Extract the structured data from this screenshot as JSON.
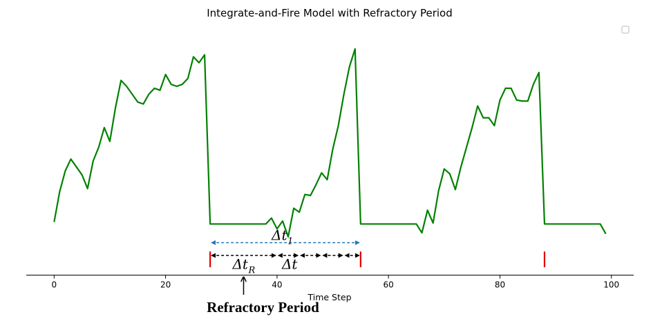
{
  "chart_data": {
    "type": "line",
    "title": "Integrate-and-Fire Model with Refractory Period",
    "xlabel": "Time Step",
    "ylabel": "",
    "xlim": [
      -5,
      104
    ],
    "ylim": [
      -2.6,
      10.3
    ],
    "x_ticks": [
      0,
      20,
      40,
      60,
      80,
      100
    ],
    "x_tick_labels": [
      "0",
      "20",
      "40",
      "60",
      "80",
      "100"
    ],
    "grid": false,
    "legend": "top-right (empty)",
    "colors": {
      "trace": "#008000",
      "spike": "#e00000",
      "interval_dt1": "#1f77b4",
      "interval_dt": "#000000"
    },
    "series": [
      {
        "x": [
          0,
          1,
          2,
          3,
          4,
          5,
          6,
          7,
          8,
          9,
          10,
          11,
          12,
          13,
          14,
          15,
          16,
          17,
          18,
          19,
          20,
          21,
          22,
          23,
          24,
          25,
          26,
          27,
          28,
          29,
          30,
          31,
          32,
          33,
          34,
          35,
          36,
          37,
          38,
          39,
          40,
          41,
          42,
          43,
          44,
          45,
          46,
          47,
          48,
          49,
          50,
          51,
          52,
          53,
          54,
          55,
          56,
          57,
          58,
          59,
          60,
          61,
          62,
          63,
          64,
          65,
          66,
          67,
          68,
          69,
          70,
          71,
          72,
          73,
          74,
          75,
          76,
          77,
          78,
          79,
          80,
          81,
          82,
          83,
          84,
          85,
          86,
          87,
          88,
          89,
          90,
          91,
          92,
          93,
          94,
          95,
          96,
          97,
          98,
          99
        ],
        "values": [
          0.1,
          1.65,
          2.7,
          3.3,
          2.9,
          2.5,
          1.8,
          3.2,
          3.9,
          4.9,
          4.2,
          5.9,
          7.3,
          7.0,
          6.6,
          6.2,
          6.1,
          6.6,
          6.9,
          6.8,
          7.6,
          7.1,
          7.0,
          7.1,
          7.4,
          8.5,
          8.2,
          8.6,
          0.0,
          0.0,
          0.0,
          0.0,
          0.0,
          0.0,
          0.0,
          0.0,
          0.0,
          0.0,
          0.0,
          0.3,
          -0.25,
          0.15,
          -0.65,
          0.8,
          0.6,
          1.5,
          1.45,
          2.0,
          2.6,
          2.25,
          3.8,
          5.0,
          6.6,
          8.0,
          8.9,
          0.0,
          0.0,
          0.0,
          0.0,
          0.0,
          0.0,
          0.0,
          0.0,
          0.0,
          0.0,
          0.0,
          -0.45,
          0.7,
          0.05,
          1.7,
          2.8,
          2.55,
          1.75,
          2.9,
          3.9,
          4.9,
          6.0,
          5.4,
          5.4,
          5.0,
          6.3,
          6.9,
          6.9,
          6.3,
          6.25,
          6.25,
          7.1,
          7.7,
          0.0,
          0.0,
          0.0,
          0.0,
          0.0,
          0.0,
          0.0,
          0.0,
          0.0,
          0.0,
          0.0,
          -0.5
        ]
      }
    ],
    "spikes": [
      {
        "x": 28,
        "y_range": [
          -2.2,
          -1.4
        ]
      },
      {
        "x": 55,
        "y_range": [
          -2.2,
          -1.4
        ]
      },
      {
        "x": 88,
        "y_range": [
          -2.2,
          -1.4
        ]
      }
    ],
    "annotations": {
      "dt1": {
        "from": 28,
        "to": 55,
        "y": -0.95,
        "label": "Δt",
        "sub": "1"
      },
      "dt_chain": {
        "y": -1.6,
        "points": [
          28,
          40,
          44,
          48,
          52,
          55
        ]
      },
      "dtR": {
        "label": "Δt",
        "sub": "R",
        "x": 33.5,
        "y": -2.15
      },
      "dt": {
        "label": "Δt",
        "x": 41.5,
        "y": -2.15
      },
      "arrow_x": 34,
      "arrow_y_range": [
        -3.6,
        -2.7
      ],
      "note": "Refractory Period"
    }
  }
}
